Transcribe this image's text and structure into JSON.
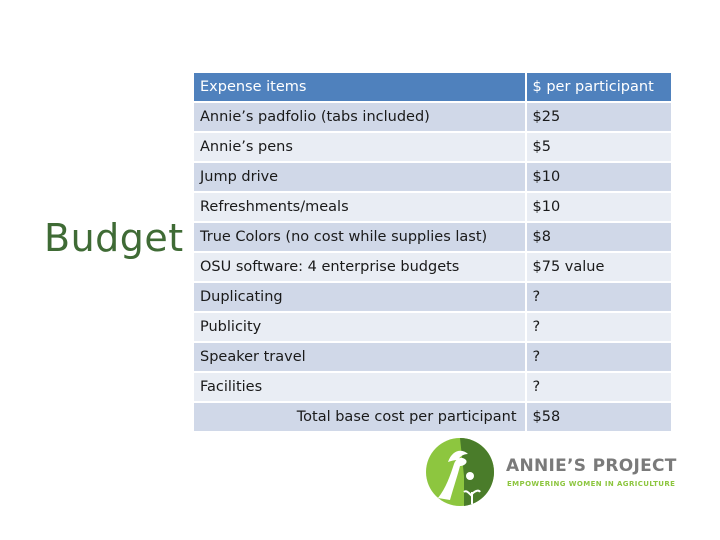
{
  "slide": {
    "title": "Budget"
  },
  "table": {
    "headers": [
      "Expense items",
      "$ per participant"
    ],
    "rows": [
      {
        "item": "Annie’s padfolio (tabs included)",
        "cost": "$25"
      },
      {
        "item": "Annie’s pens",
        "cost": "$5"
      },
      {
        "item": "Jump drive",
        "cost": "$10"
      },
      {
        "item": "Refreshments/meals",
        "cost": "$10"
      },
      {
        "item": "True Colors (no cost while supplies last)",
        "cost": "$8"
      },
      {
        "item": "OSU software: 4 enterprise budgets",
        "cost": "$75 value"
      },
      {
        "item": "Duplicating",
        "cost": "?"
      },
      {
        "item": "Publicity",
        "cost": "?"
      },
      {
        "item": "Speaker travel",
        "cost": "?"
      },
      {
        "item": "Facilities",
        "cost": "?"
      }
    ],
    "total": {
      "label": "Total base cost per participant",
      "cost": "$58"
    }
  },
  "logo": {
    "name": "ANNIE’S PROJECT",
    "tagline": "EMPOWERING WOMEN IN AGRICULTURE",
    "mark_icon": "annies-project-logo-icon",
    "colors": {
      "green": "#8dc63f",
      "dark_green": "#4a7c2a",
      "gray": "#7a7a7a"
    }
  },
  "colors": {
    "title": "#3f6b35",
    "header_bg": "#4f81bd",
    "row_odd": "#d0d8e8",
    "row_even": "#e9edf4"
  }
}
